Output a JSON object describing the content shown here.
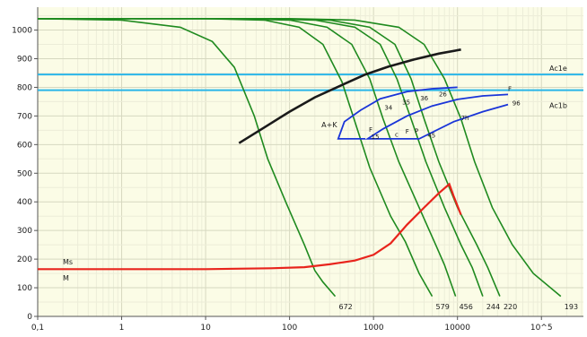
{
  "chart_data": {
    "type": "line",
    "title": "",
    "xlabel": "",
    "ylabel": "",
    "x_scale": "log",
    "xlim": [
      0.1,
      316228
    ],
    "ylim": [
      0,
      1080
    ],
    "x_ticks": [
      0.1,
      1,
      10,
      100,
      1000,
      10000,
      100000
    ],
    "x_tick_labels": [
      "0,1",
      "1",
      "10",
      "100",
      "1000",
      "10000",
      "10^5"
    ],
    "y_ticks": [
      0,
      100,
      200,
      300,
      400,
      500,
      600,
      700,
      800,
      900,
      1000
    ],
    "y_tick_labels": [
      "0",
      "100",
      "200",
      "300",
      "400",
      "500",
      "600",
      "700",
      "800",
      "900",
      "1000"
    ],
    "grid": true,
    "background": "#fbfce6",
    "cooling_curves": {
      "color": "#1f8a1f",
      "items": [
        {
          "end_label": "672",
          "points": [
            [
              0.1,
              1040
            ],
            [
              1,
              1035
            ],
            [
              5,
              1010
            ],
            [
              12,
              960
            ],
            [
              22,
              870
            ],
            [
              38,
              700
            ],
            [
              55,
              550
            ],
            [
              90,
              400
            ],
            [
              150,
              250
            ],
            [
              200,
              160
            ],
            [
              250,
              120
            ],
            [
              350,
              70
            ]
          ]
        },
        {
          "end_label": "579",
          "points": [
            [
              0.1,
              1040
            ],
            [
              10,
              1040
            ],
            [
              50,
              1035
            ],
            [
              130,
              1010
            ],
            [
              250,
              950
            ],
            [
              420,
              820
            ],
            [
              600,
              680
            ],
            [
              900,
              520
            ],
            [
              1600,
              350
            ],
            [
              2400,
              260
            ],
            [
              3500,
              150
            ],
            [
              5000,
              70
            ]
          ]
        },
        {
          "end_label": "456",
          "points": [
            [
              0.1,
              1040
            ],
            [
              20,
              1040
            ],
            [
              100,
              1035
            ],
            [
              280,
              1010
            ],
            [
              550,
              950
            ],
            [
              900,
              830
            ],
            [
              1300,
              690
            ],
            [
              2000,
              540
            ],
            [
              3500,
              380
            ],
            [
              5500,
              250
            ],
            [
              7000,
              180
            ],
            [
              9500,
              70
            ]
          ]
        },
        {
          "end_label": "244",
          "points": [
            [
              0.1,
              1040
            ],
            [
              40,
              1040
            ],
            [
              200,
              1035
            ],
            [
              600,
              1010
            ],
            [
              1200,
              950
            ],
            [
              1900,
              830
            ],
            [
              2800,
              690
            ],
            [
              4200,
              540
            ],
            [
              7000,
              380
            ],
            [
              11000,
              250
            ],
            [
              15000,
              170
            ],
            [
              20000,
              70
            ]
          ]
        },
        {
          "end_label": "220",
          "points": [
            [
              0.1,
              1040
            ],
            [
              60,
              1040
            ],
            [
              300,
              1035
            ],
            [
              900,
              1010
            ],
            [
              1800,
              950
            ],
            [
              2800,
              830
            ],
            [
              4000,
              690
            ],
            [
              6000,
              540
            ],
            [
              10000,
              380
            ],
            [
              17000,
              250
            ],
            [
              23000,
              170
            ],
            [
              32000,
              70
            ]
          ]
        },
        {
          "end_label": "193",
          "points": [
            [
              0.1,
              1040
            ],
            [
              100,
              1040
            ],
            [
              600,
              1035
            ],
            [
              2000,
              1010
            ],
            [
              4000,
              950
            ],
            [
              7000,
              830
            ],
            [
              11000,
              690
            ],
            [
              16000,
              540
            ],
            [
              26000,
              380
            ],
            [
              45000,
              250
            ],
            [
              80000,
              150
            ],
            [
              170000,
              70
            ]
          ]
        }
      ]
    },
    "critical_lines": {
      "color": "#2ab6e8",
      "items": [
        {
          "label": "Ac1e",
          "y": 845
        },
        {
          "label": "Ac1b",
          "y": 790
        }
      ]
    },
    "ms_curve": {
      "color": "#e8241c",
      "label": "Ms",
      "points": [
        [
          0.1,
          165
        ],
        [
          10,
          165
        ],
        [
          60,
          168
        ],
        [
          150,
          172
        ],
        [
          300,
          182
        ],
        [
          600,
          195
        ],
        [
          1000,
          215
        ],
        [
          1600,
          255
        ],
        [
          2500,
          320
        ],
        [
          4000,
          380
        ],
        [
          6000,
          430
        ],
        [
          8000,
          462
        ],
        [
          9000,
          420
        ],
        [
          11000,
          355
        ]
      ]
    },
    "m_label": "M",
    "carbide_curve": {
      "color": "#1a1a1a",
      "label": "A+K",
      "points": [
        [
          25,
          605
        ],
        [
          50,
          660
        ],
        [
          100,
          715
        ],
        [
          200,
          765
        ],
        [
          400,
          805
        ],
        [
          800,
          845
        ],
        [
          1500,
          872
        ],
        [
          3000,
          897
        ],
        [
          6000,
          918
        ],
        [
          11000,
          932
        ]
      ]
    },
    "transformation_regions": {
      "color": "#1a35d8",
      "items": [
        {
          "points": [
            [
              10000,
              800
            ],
            [
              5000,
              795
            ],
            [
              2500,
              785
            ],
            [
              1200,
              760
            ],
            [
              700,
              720
            ],
            [
              450,
              680
            ],
            [
              380,
              620
            ],
            [
              800,
              620
            ]
          ]
        },
        {
          "points": [
            [
              40000,
              775
            ],
            [
              20000,
              770
            ],
            [
              10000,
              758
            ],
            [
              5000,
              735
            ],
            [
              2500,
              700
            ],
            [
              1300,
              655
            ],
            [
              850,
              620
            ],
            [
              3500,
              620
            ],
            [
              9000,
              680
            ],
            [
              20000,
              715
            ],
            [
              40000,
              740
            ]
          ]
        }
      ]
    },
    "curve_labels": [
      {
        "text": "F",
        "x": 880,
        "y": 645
      },
      {
        "text": "15",
        "x": 940,
        "y": 620
      },
      {
        "text": "34",
        "x": 1350,
        "y": 722
      },
      {
        "text": "35",
        "x": 2200,
        "y": 740
      },
      {
        "text": "36",
        "x": 3600,
        "y": 755
      },
      {
        "text": "26",
        "x": 6000,
        "y": 768
      },
      {
        "text": "F",
        "x": 2400,
        "y": 638
      },
      {
        "text": "P",
        "x": 3100,
        "y": 640
      },
      {
        "text": "45",
        "x": 4400,
        "y": 625
      },
      {
        "text": "7h",
        "x": 11000,
        "y": 685
      },
      {
        "text": "F",
        "x": 40000,
        "y": 788
      },
      {
        "text": "96",
        "x": 45000,
        "y": 738
      },
      {
        "text": "c",
        "x": 1800,
        "y": 628
      }
    ]
  }
}
